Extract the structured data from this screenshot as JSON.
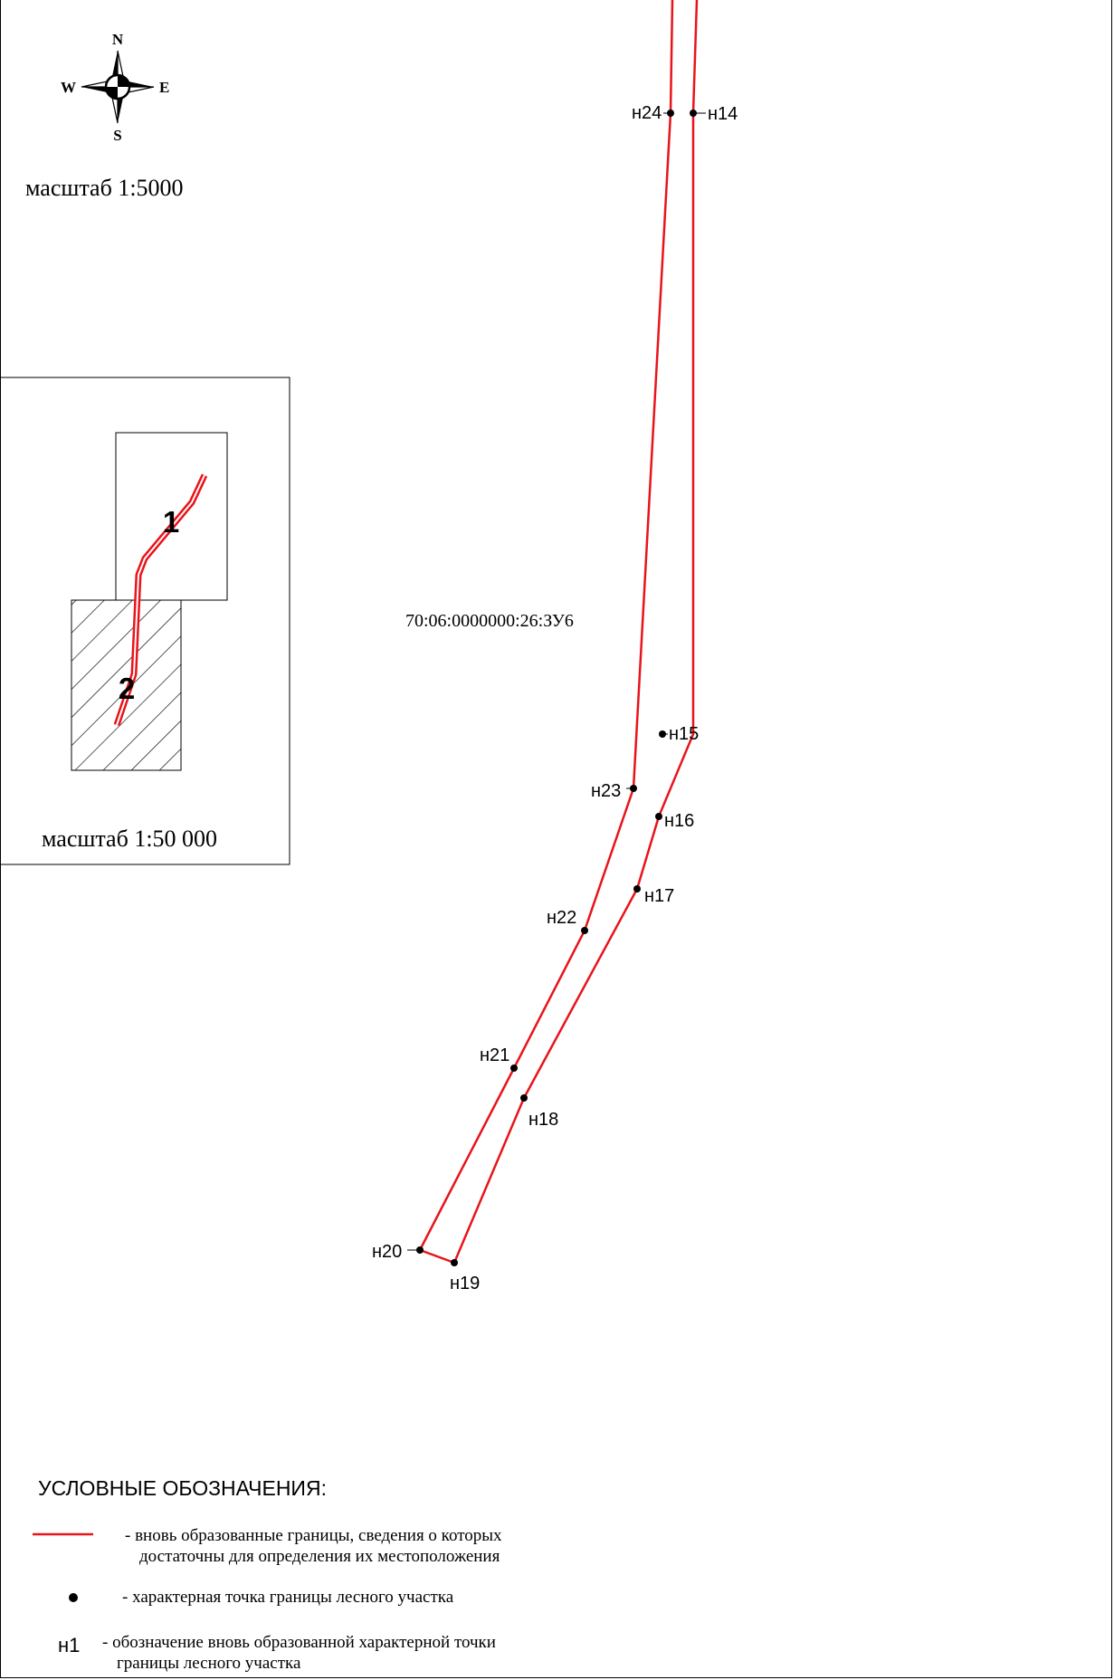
{
  "compass": {
    "n": "N",
    "s": "S",
    "w": "W",
    "e": "E",
    "icon": "compass-rose-icon"
  },
  "main_map": {
    "scale_label": "масштаб 1:5000",
    "parcel_id": "70:06:0000000:26:ЗУ6",
    "points": [
      {
        "id": "н14",
        "label": "н14"
      },
      {
        "id": "н15",
        "label": "н15"
      },
      {
        "id": "н16",
        "label": "н16"
      },
      {
        "id": "н17",
        "label": "н17"
      },
      {
        "id": "н18",
        "label": "н18"
      },
      {
        "id": "н19",
        "label": "н19"
      },
      {
        "id": "н20",
        "label": "н20"
      },
      {
        "id": "н21",
        "label": "н21"
      },
      {
        "id": "н22",
        "label": "н22"
      },
      {
        "id": "н23",
        "label": "н23"
      },
      {
        "id": "н24",
        "label": "н24"
      }
    ]
  },
  "inset_map": {
    "scale_label": "масштаб 1:50 000",
    "sheet_labels": [
      "1",
      "2"
    ]
  },
  "legend": {
    "title": "УСЛОВНЫЕ ОБОЗНАЧЕНИЯ:",
    "items": [
      {
        "symbol": "red-line",
        "text_line1": "- вновь образованные границы, сведения о которых",
        "text_line2": "достаточны для определения их местоположения"
      },
      {
        "symbol": "black-dot",
        "text_line1": "- характерная точка границы лесного участка"
      },
      {
        "symbol_text": "н1",
        "text_line1": "- обозначение вновь образованной характерной точки",
        "text_line2": "границы лесного участка"
      }
    ]
  },
  "colors": {
    "boundary": "#e8141b",
    "ink": "#000000"
  }
}
